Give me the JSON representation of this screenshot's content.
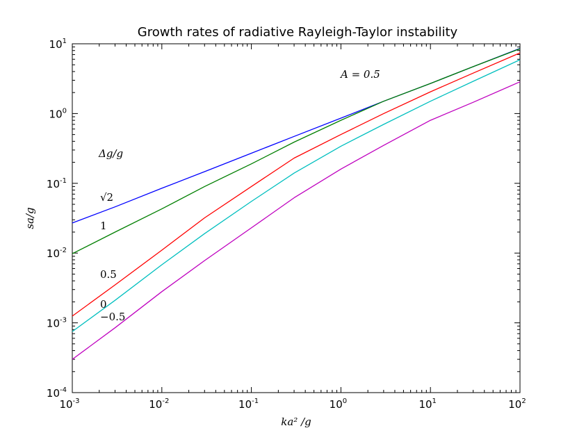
{
  "chart_data": {
    "type": "line",
    "title": "Growth rates of radiative Rayleigh-Taylor instability",
    "xlabel": "ka² /g",
    "ylabel": "sa/g",
    "xscale": "log",
    "yscale": "log",
    "xlim": [
      0.001,
      100
    ],
    "ylim": [
      0.0001,
      10
    ],
    "x_ticks": [
      {
        "value": 0.001,
        "base": "10",
        "exp": "-3"
      },
      {
        "value": 0.01,
        "base": "10",
        "exp": "-2"
      },
      {
        "value": 0.1,
        "base": "10",
        "exp": "-1"
      },
      {
        "value": 1,
        "base": "10",
        "exp": "0"
      },
      {
        "value": 10,
        "base": "10",
        "exp": "1"
      },
      {
        "value": 100,
        "base": "10",
        "exp": "2"
      }
    ],
    "y_ticks": [
      {
        "value": 0.0001,
        "base": "10",
        "exp": "-4"
      },
      {
        "value": 0.001,
        "base": "10",
        "exp": "-3"
      },
      {
        "value": 0.01,
        "base": "10",
        "exp": "-2"
      },
      {
        "value": 0.1,
        "base": "10",
        "exp": "-1"
      },
      {
        "value": 1,
        "base": "10",
        "exp": "0"
      },
      {
        "value": 10,
        "base": "10",
        "exp": "1"
      }
    ],
    "grid": false,
    "x": [
      0.001,
      0.003,
      0.01,
      0.03,
      0.1,
      0.3,
      1,
      3,
      10,
      30,
      100
    ],
    "series": [
      {
        "name": "√2",
        "color": "#0000ff",
        "values": [
          0.027,
          0.046,
          0.085,
          0.147,
          0.27,
          0.47,
          0.86,
          1.5,
          2.7,
          4.7,
          8.6
        ]
      },
      {
        "name": "1",
        "color": "#007f00",
        "values": [
          0.0098,
          0.02,
          0.043,
          0.09,
          0.19,
          0.39,
          0.8,
          1.5,
          2.7,
          4.7,
          8.5
        ]
      },
      {
        "name": "0.5",
        "color": "#ff0000",
        "values": [
          0.00125,
          0.0035,
          0.011,
          0.032,
          0.09,
          0.23,
          0.5,
          1.0,
          2.05,
          3.8,
          7.4
        ]
      },
      {
        "name": "0",
        "color": "#00bfbf",
        "values": [
          0.00075,
          0.0021,
          0.0068,
          0.019,
          0.055,
          0.14,
          0.34,
          0.7,
          1.5,
          2.9,
          5.9
        ]
      },
      {
        "name": "−0.5",
        "color": "#bf00bf",
        "values": [
          0.0003,
          0.00085,
          0.0028,
          0.0078,
          0.023,
          0.062,
          0.16,
          0.35,
          0.8,
          1.45,
          2.85
        ]
      }
    ],
    "annotations": {
      "atwood": "A = 0.5",
      "legend_header": "Δg/g",
      "labels": [
        "√2",
        "1",
        "0.5",
        "0",
        "−0.5"
      ]
    }
  }
}
